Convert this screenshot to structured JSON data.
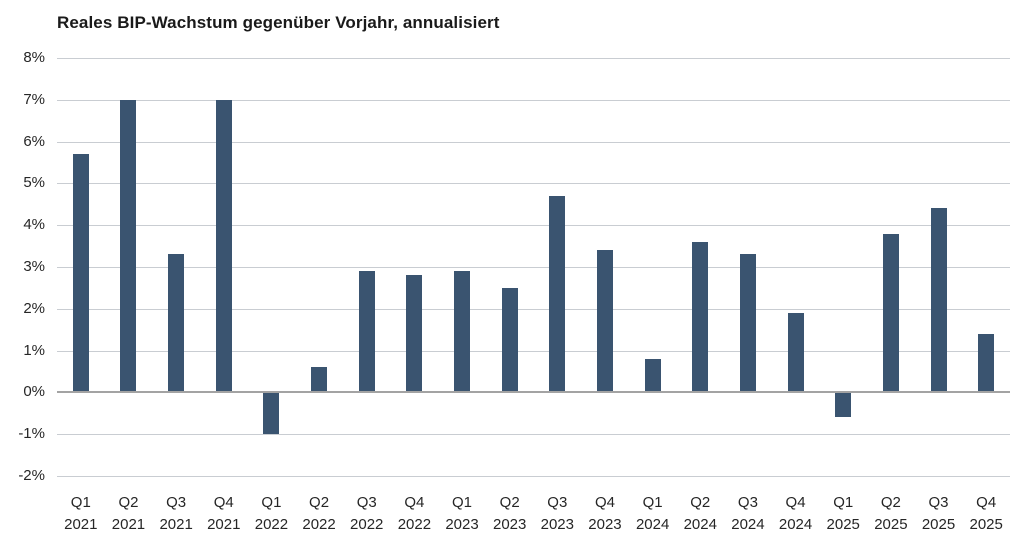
{
  "chart_data": {
    "type": "bar",
    "title": "Reales BIP-Wachstum gegenüber Vorjahr, annualisiert",
    "categories": [
      {
        "quarter": "Q1",
        "year": "2021"
      },
      {
        "quarter": "Q2",
        "year": "2021"
      },
      {
        "quarter": "Q3",
        "year": "2021"
      },
      {
        "quarter": "Q4",
        "year": "2021"
      },
      {
        "quarter": "Q1",
        "year": "2022"
      },
      {
        "quarter": "Q2",
        "year": "2022"
      },
      {
        "quarter": "Q3",
        "year": "2022"
      },
      {
        "quarter": "Q4",
        "year": "2022"
      },
      {
        "quarter": "Q1",
        "year": "2023"
      },
      {
        "quarter": "Q2",
        "year": "2023"
      },
      {
        "quarter": "Q3",
        "year": "2023"
      },
      {
        "quarter": "Q4",
        "year": "2023"
      },
      {
        "quarter": "Q1",
        "year": "2024"
      },
      {
        "quarter": "Q2",
        "year": "2024"
      },
      {
        "quarter": "Q3",
        "year": "2024"
      },
      {
        "quarter": "Q4",
        "year": "2024"
      },
      {
        "quarter": "Q1",
        "year": "2025"
      },
      {
        "quarter": "Q2",
        "year": "2025"
      },
      {
        "quarter": "Q3",
        "year": "2025"
      },
      {
        "quarter": "Q4",
        "year": "2025"
      }
    ],
    "values": [
      5.7,
      7.0,
      3.3,
      7.0,
      -1.0,
      0.6,
      2.9,
      2.8,
      2.9,
      2.5,
      4.7,
      3.4,
      0.8,
      3.6,
      3.3,
      1.9,
      -0.6,
      3.8,
      4.4,
      1.4
    ],
    "unit": "%",
    "xlabel": "",
    "ylabel": "",
    "ylim": [
      -2,
      8
    ],
    "y_ticks": [
      {
        "label": "8%",
        "value": 8
      },
      {
        "label": "7%",
        "value": 7
      },
      {
        "label": "6%",
        "value": 6
      },
      {
        "label": "5%",
        "value": 5
      },
      {
        "label": "4%",
        "value": 4
      },
      {
        "label": "3%",
        "value": 3
      },
      {
        "label": "2%",
        "value": 2
      },
      {
        "label": "1%",
        "value": 1
      },
      {
        "label": "0%",
        "value": 0
      },
      {
        "label": "-1%",
        "value": -1
      },
      {
        "label": "-2%",
        "value": -2
      }
    ],
    "grid": "horizontal",
    "legend": "none",
    "colors": {
      "bar": "#3a5470",
      "gridline": "#c9cdd2",
      "zero_line": "#a3a3a3",
      "tick_text": "#262626",
      "title_text": "#1a1a1a"
    }
  }
}
